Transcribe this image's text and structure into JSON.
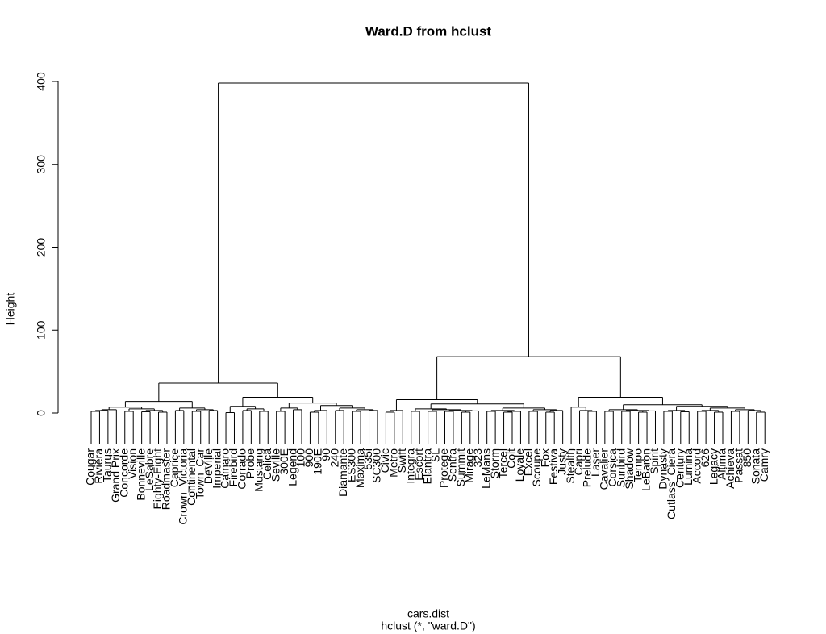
{
  "chart_data": {
    "type": "dendrogram",
    "title": "Ward.D from hclust",
    "ylabel": "Height",
    "xlabel": "cars.dist",
    "subtitle": "hclust (*, \"ward.D\")",
    "ylim": [
      0,
      400
    ],
    "yticks": [
      0,
      100,
      200,
      300,
      400
    ],
    "tree": {
      "height": 398,
      "children": [
        {
          "height": 36,
          "children": [
            {
              "height": 14,
              "children": [
                {
                  "height": 7,
                  "children": [
                    {
                      "height": 4,
                      "children": [
                        {
                          "height": 3,
                          "children": [
                            {
                              "height": 2,
                              "children": [
                                "Cougar",
                                "Riviera"
                              ]
                            },
                            "Taurus"
                          ]
                        },
                        "Grand Prix"
                      ]
                    },
                    {
                      "height": 5,
                      "children": [
                        {
                          "height": 2,
                          "children": [
                            "Concorde",
                            "Vision"
                          ]
                        },
                        {
                          "height": 3,
                          "children": [
                            {
                              "height": 1.5,
                              "children": [
                                "Bonneville",
                                "LeSabre"
                              ]
                            },
                            {
                              "height": 1,
                              "children": [
                                "Eighty-Eight",
                                "Roadmaster"
                              ]
                            }
                          ]
                        }
                      ]
                    }
                  ]
                },
                {
                  "height": 6,
                  "children": [
                    {
                      "height": 3,
                      "children": [
                        "Caprice",
                        "Crown_Victoria"
                      ]
                    },
                    {
                      "height": 4,
                      "children": [
                        {
                          "height": 2,
                          "children": [
                            "Continental",
                            "Town_Car"
                          ]
                        },
                        {
                          "height": 3,
                          "children": [
                            "DeVille",
                            "Imperial"
                          ]
                        }
                      ]
                    }
                  ]
                }
              ]
            },
            {
              "height": 19,
              "children": [
                {
                  "height": 8,
                  "children": [
                    {
                      "height": 0.5,
                      "children": [
                        "Camaro",
                        "Firebird"
                      ]
                    },
                    {
                      "height": 5,
                      "children": [
                        {
                          "height": 3,
                          "children": [
                            "Corrado",
                            "Probe"
                          ]
                        },
                        {
                          "height": 2,
                          "children": [
                            "Mustang",
                            "Celica"
                          ]
                        }
                      ]
                    }
                  ]
                },
                {
                  "height": 12,
                  "children": [
                    {
                      "height": 6,
                      "children": [
                        {
                          "height": 2,
                          "children": [
                            "Seville",
                            "300E"
                          ]
                        },
                        {
                          "height": 4,
                          "children": [
                            "Legend",
                            "100"
                          ]
                        }
                      ]
                    },
                    {
                      "height": 9,
                      "children": [
                        {
                          "height": 3,
                          "children": [
                            {
                              "height": 1,
                              "children": [
                                "900",
                                "190E"
                              ]
                            },
                            "90"
                          ]
                        },
                        {
                          "height": 6,
                          "children": [
                            {
                              "height": 3,
                              "children": [
                                "240",
                                "Diamante"
                              ]
                            },
                            {
                              "height": 4,
                              "children": [
                                {
                                  "height": 2,
                                  "children": [
                                    "ES300",
                                    "Maxima"
                                  ]
                                },
                                {
                                  "height": 3,
                                  "children": [
                                    "535i",
                                    "SC300"
                                  ]
                                }
                              ]
                            }
                          ]
                        }
                      ]
                    }
                  ]
                }
              ]
            }
          ]
        },
        {
          "height": 68,
          "children": [
            {
              "height": 16,
              "children": [
                {
                  "height": 3,
                  "children": [
                    {
                      "height": 1,
                      "children": [
                        "Civic",
                        "Metro"
                      ]
                    },
                    "Swift"
                  ]
                },
                {
                  "height": 11,
                  "children": [
                    {
                      "height": 5,
                      "children": [
                        {
                          "height": 2,
                          "children": [
                            "Integra",
                            "Escort"
                          ]
                        },
                        {
                          "height": 4,
                          "children": [
                            {
                              "height": 2,
                              "children": [
                                "Elantra",
                                "SL"
                              ]
                            },
                            {
                              "height": 3,
                              "children": [
                                {
                                  "height": 2,
                                  "children": [
                                    "Protege",
                                    "Sentra"
                                  ]
                                },
                                {
                                  "height": 2.5,
                                  "children": [
                                    {
                                      "height": 1,
                                      "children": [
                                        "Summit",
                                        "Mirage"
                                      ]
                                    },
                                    "323"
                                  ]
                                }
                              ]
                            }
                          ]
                        }
                      ]
                    },
                    {
                      "height": 6,
                      "children": [
                        {
                          "height": 3,
                          "children": [
                            {
                              "height": 2,
                              "children": [
                                "LeMans",
                                "Storm"
                              ]
                            },
                            {
                              "height": 2,
                              "children": [
                                {
                                  "height": 1,
                                  "children": [
                                    "Tercel",
                                    "Colt"
                                  ]
                                },
                                "Loyale"
                              ]
                            }
                          ]
                        },
                        {
                          "height": 4,
                          "children": [
                            {
                              "height": 2,
                              "children": [
                                "Excel",
                                "Scoupe"
                              ]
                            },
                            {
                              "height": 3,
                              "children": [
                                {
                                  "height": 1,
                                  "children": [
                                    "Fox",
                                    "Festiva"
                                  ]
                                },
                                "Justy"
                              ]
                            }
                          ]
                        }
                      ]
                    }
                  ]
                }
              ]
            },
            {
              "height": 19,
              "children": [
                {
                  "height": 7,
                  "children": [
                    "Stealth",
                    {
                      "height": 3,
                      "children": [
                        "Capri",
                        {
                          "height": 2,
                          "children": [
                            "Prelude",
                            "Laser"
                          ]
                        }
                      ]
                    }
                  ]
                },
                {
                  "height": 10,
                  "children": [
                    {
                      "height": 4,
                      "children": [
                        {
                          "height": 2,
                          "children": [
                            "Cavalier",
                            "Corsica"
                          ]
                        },
                        {
                          "height": 3,
                          "children": [
                            {
                              "height": 2,
                              "children": [
                                "Sunbird",
                                "Shadow"
                              ]
                            },
                            {
                              "height": 2.5,
                              "children": [
                                {
                                  "height": 1,
                                  "children": [
                                    "Tempo",
                                    "LeBaron"
                                  ]
                                },
                                "Spirit"
                              ]
                            }
                          ]
                        }
                      ]
                    },
                    {
                      "height": 8,
                      "children": [
                        {
                          "height": 3,
                          "children": [
                            {
                              "height": 2,
                              "children": [
                                "Dynasty",
                                "Cutlass_Ciera"
                              ]
                            },
                            {
                              "height": 1.5,
                              "children": [
                                "Century",
                                "Lumina"
                              ]
                            }
                          ]
                        },
                        {
                          "height": 6,
                          "children": [
                            {
                              "height": 3,
                              "children": [
                                {
                                  "height": 2,
                                  "children": [
                                    "Accord",
                                    "626"
                                  ]
                                },
                                {
                                  "height": 1,
                                  "children": [
                                    "Legacy",
                                    "Altima"
                                  ]
                                }
                              ]
                            },
                            {
                              "height": 4,
                              "children": [
                                {
                                  "height": 2,
                                  "children": [
                                    "Achieva",
                                    "Passat"
                                  ]
                                },
                                {
                                  "height": 3,
                                  "children": [
                                    "850",
                                    {
                                      "height": 1,
                                      "children": [
                                        "Sonata",
                                        "Camry"
                                      ]
                                    }
                                  ]
                                }
                              ]
                            }
                          ]
                        }
                      ]
                    }
                  ]
                }
              ]
            }
          ]
        }
      ]
    }
  }
}
